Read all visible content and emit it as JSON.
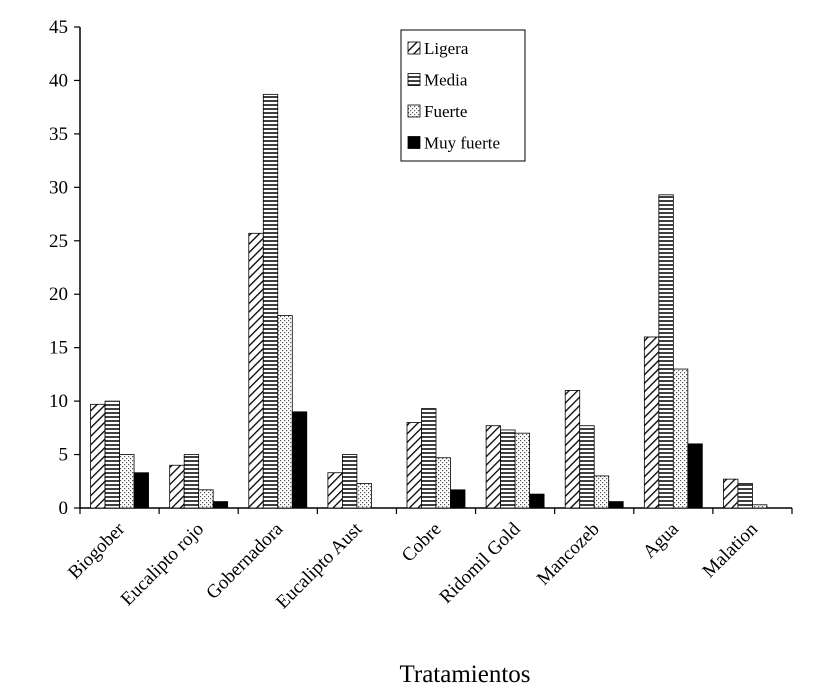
{
  "chart_data": {
    "type": "bar",
    "title": "",
    "xlabel": "Tratamientos",
    "ylabel": "",
    "ylim": [
      0,
      45
    ],
    "yticks": [
      0,
      5,
      10,
      15,
      20,
      25,
      30,
      35,
      40,
      45
    ],
    "grid": false,
    "legend_position": "top-center",
    "categories": [
      "Biogober",
      "Eucalipto rojo",
      "Gobernadora",
      "Eucalipto Aust",
      "Cobre",
      "Ridomil Gold",
      "Mancozeb",
      "Agua",
      "Malation"
    ],
    "series": [
      {
        "name": "Ligera",
        "pattern": "diagonal-hatch",
        "values": [
          9.7,
          4.0,
          25.7,
          3.3,
          8.0,
          7.7,
          11.0,
          16.0,
          2.7
        ]
      },
      {
        "name": "Media",
        "pattern": "horizontal-stripes",
        "values": [
          10.0,
          5.0,
          38.7,
          5.0,
          9.3,
          7.3,
          7.7,
          29.3,
          2.3
        ]
      },
      {
        "name": "Fuerte",
        "pattern": "dotted",
        "values": [
          5.0,
          1.7,
          18.0,
          2.3,
          4.7,
          7.0,
          3.0,
          13.0,
          0.3
        ]
      },
      {
        "name": "Muy fuerte",
        "pattern": "solid-black",
        "values": [
          3.3,
          0.6,
          9.0,
          0.0,
          1.7,
          1.3,
          0.6,
          6.0,
          0.0
        ]
      }
    ]
  }
}
